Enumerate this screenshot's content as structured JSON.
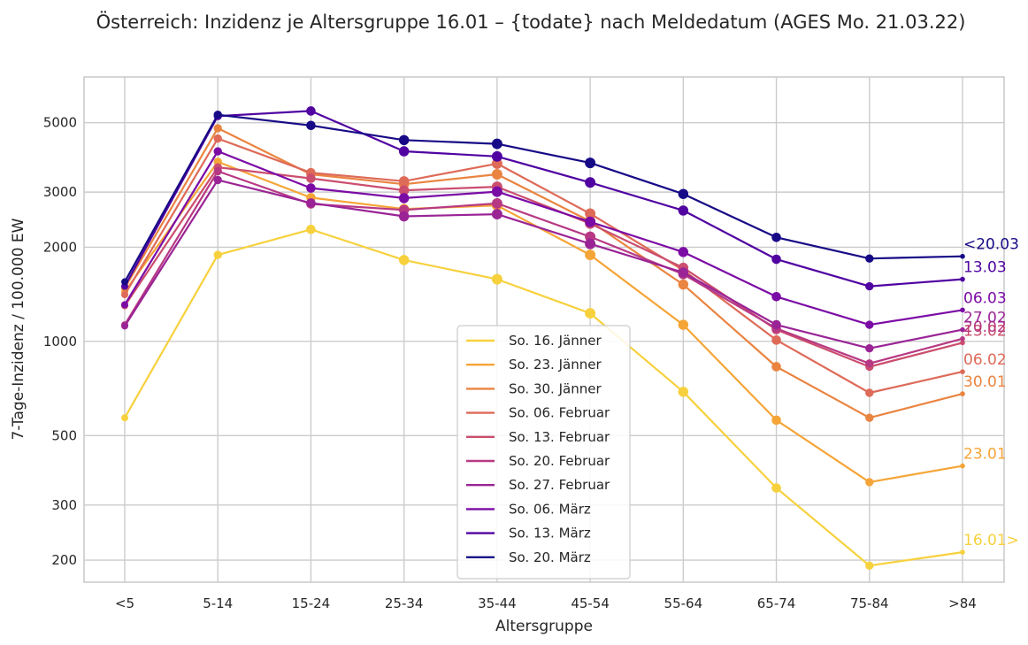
{
  "chart_data": {
    "type": "line",
    "title": "Österreich: Inzidenz je Altersgruppe 16.01 – {todate} nach Meldedatum (AGES Mo. 21.03.22)",
    "xlabel": "Altersgruppe",
    "ylabel": "7-Tage-Inzidenz / 100.000 EW",
    "yscale": "log",
    "ylim": [
      170,
      7000
    ],
    "yticks": [
      200,
      300,
      500,
      1000,
      2000,
      3000,
      5000
    ],
    "yticklabels": [
      "200",
      "300",
      "500",
      "1000",
      "2000",
      "3000",
      "5000"
    ],
    "categories": [
      "<5",
      "5-14",
      "15-24",
      "25-34",
      "35-44",
      "45-54",
      "55-64",
      "65-74",
      "75-84",
      ">84"
    ],
    "grid": true,
    "legend_position": "lower center",
    "series": [
      {
        "name": "So. 16. Jänner",
        "end_label": "16.01>",
        "color": "#f7d13d",
        "values": [
          570,
          1890,
          2280,
          1820,
          1580,
          1230,
          690,
          340,
          192,
          212
        ]
      },
      {
        "name": "So. 23. Jänner",
        "end_label": "23.01",
        "color": "#f5a537",
        "values": [
          1440,
          3750,
          2880,
          2650,
          2720,
          1890,
          1130,
          560,
          355,
          400
        ]
      },
      {
        "name": "So. 30. Jänner",
        "end_label": "30.01",
        "color": "#ea8441",
        "values": [
          1480,
          4800,
          3420,
          3180,
          3420,
          2420,
          1520,
          830,
          570,
          680
        ]
      },
      {
        "name": "So. 06. Februar",
        "end_label": "06.02",
        "color": "#de6a58",
        "values": [
          1410,
          4450,
          3460,
          3250,
          3700,
          2560,
          1690,
          1010,
          685,
          800
        ]
      },
      {
        "name": "So. 13. Februar",
        "end_label": "13.02",
        "color": "#cb4e6e",
        "values": [
          1300,
          3600,
          3320,
          3040,
          3120,
          2380,
          1720,
          1090,
          830,
          990
        ]
      },
      {
        "name": "So. 20. Februar",
        "end_label": "20.02",
        "color": "#b73983",
        "values": [
          1130,
          3500,
          2750,
          2630,
          2760,
          2160,
          1640,
          1100,
          850,
          1020
        ]
      },
      {
        "name": "So. 27. Februar",
        "end_label": "27.02",
        "color": "#9a2496",
        "values": [
          1120,
          3280,
          2770,
          2510,
          2550,
          2050,
          1660,
          1130,
          950,
          1090
        ]
      },
      {
        "name": "So. 06. März",
        "end_label": "06.03",
        "color": "#7b0ba5",
        "values": [
          1310,
          4050,
          3090,
          2870,
          3010,
          2410,
          1930,
          1390,
          1130,
          1260
        ]
      },
      {
        "name": "So. 13. März",
        "end_label": "13.03",
        "color": "#5003a1",
        "values": [
          1500,
          5250,
          5450,
          4050,
          3900,
          3220,
          2620,
          1830,
          1500,
          1580
        ]
      },
      {
        "name": "So. 20. März",
        "end_label": "<20.03",
        "color": "#170a86",
        "values": [
          1550,
          5300,
          4900,
          4400,
          4280,
          3720,
          2960,
          2150,
          1840,
          1870
        ]
      }
    ]
  }
}
